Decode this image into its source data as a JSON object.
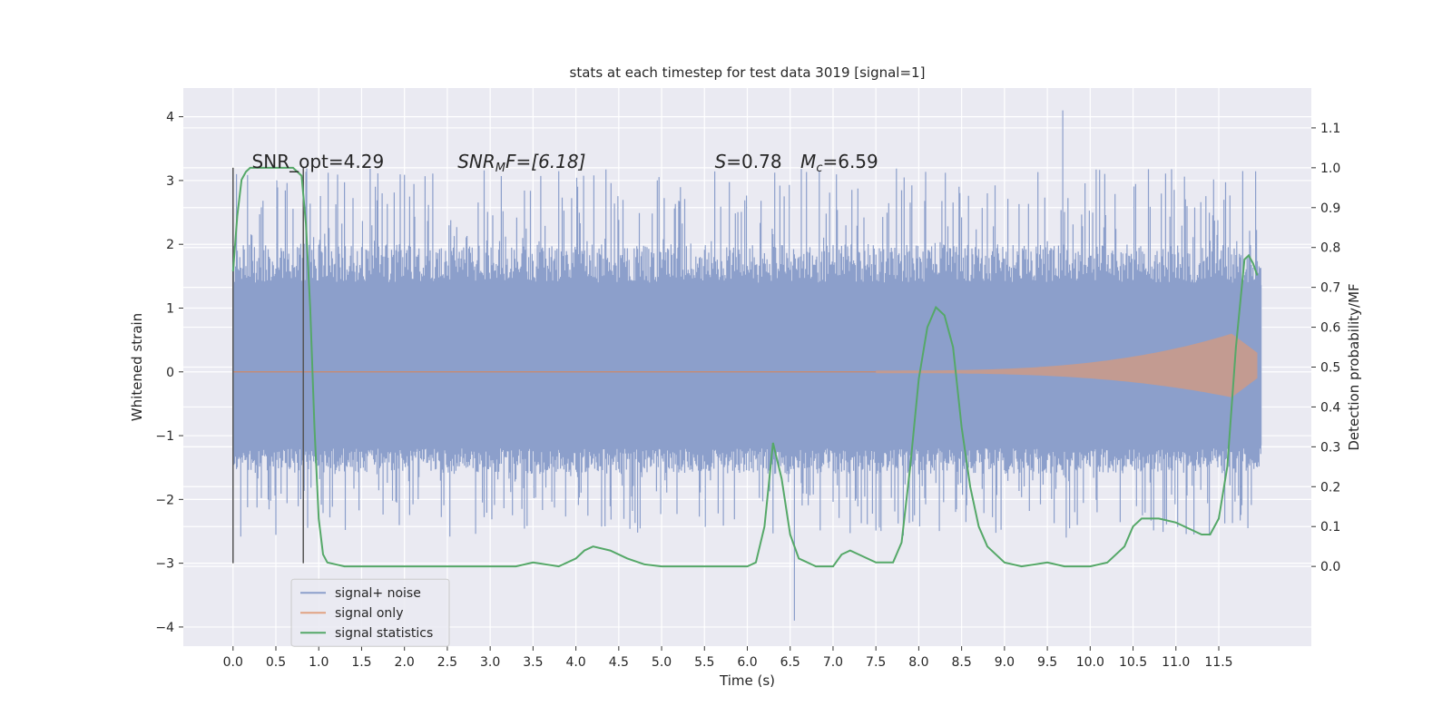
{
  "chart_data": {
    "type": "line",
    "title": "stats at each timestep for test data 3019 [signal=1]",
    "xlabel": "Time (s)",
    "ylabel": "Whitened strain",
    "ylabel_right": "Detection probability/MF",
    "xlim": [
      -0.58,
      12.58
    ],
    "ylim": [
      -4.3,
      4.45
    ],
    "ylim_right": [
      -0.2,
      1.2
    ],
    "x_ticks": [
      0.0,
      0.5,
      1.0,
      1.5,
      2.0,
      2.5,
      3.0,
      3.5,
      4.0,
      4.5,
      5.0,
      5.5,
      6.0,
      6.5,
      7.0,
      7.5,
      8.0,
      8.5,
      9.0,
      9.5,
      10.0,
      10.5,
      11.0,
      11.5
    ],
    "x_tick_labels": [
      "0.0",
      "0.5",
      "1.0",
      "1.5",
      "2.0",
      "2.5",
      "3.0",
      "3.5",
      "4.0",
      "4.5",
      "5.0",
      "5.5",
      "6.0",
      "6.5",
      "7.0",
      "7.5",
      "8.0",
      "8.5",
      "9.0",
      "9.5",
      "10.0",
      "10.5",
      "11.0",
      "11.5"
    ],
    "y_ticks": [
      -4,
      -3,
      -2,
      -1,
      0,
      1,
      2,
      3,
      4
    ],
    "y_tick_labels": [
      "−4",
      "−3",
      "−2",
      "−1",
      "0",
      "1",
      "2",
      "3",
      "4"
    ],
    "y_right_ticks": [
      0.0,
      0.1,
      0.2,
      0.3,
      0.4,
      0.5,
      0.6,
      0.7,
      0.8,
      0.9,
      1.0,
      1.1
    ],
    "y_right_tick_labels": [
      "0.0",
      "0.1",
      "0.2",
      "0.3",
      "0.4",
      "0.5",
      "0.6",
      "0.7",
      "0.8",
      "0.9",
      "1.0",
      "1.1"
    ],
    "grid": true,
    "legend_position": "lower-left",
    "annotations": {
      "snr_opt": "SNR_opt=4.29",
      "snr_mf_base": "SNR",
      "snr_mf_sub": "M",
      "snr_mf_rest": "F=[6.18]",
      "s_label": "S",
      "s_value": "=0.78",
      "mc_base": "M",
      "mc_sub": "c",
      "mc_value": "=6.59"
    },
    "vertical_lines": [
      0.0,
      0.82
    ],
    "series": [
      {
        "name": "signal+ noise",
        "color": "#8c9fcb",
        "x_range": [
          0.0,
          12.0
        ],
        "body_range": [
          -1.6,
          2.0
        ],
        "typical_peak_range": [
          -2.6,
          3.2
        ],
        "max_spike": 4.1,
        "min_spike": -3.9
      },
      {
        "name": "signal only",
        "color": "#dd8452",
        "chirp": {
          "start_time": 7.5,
          "end_time": 11.65,
          "max_amplitude_positive": 0.6,
          "max_amplitude_negative": -0.4,
          "end_amplitude_positive": 0.3,
          "end_amplitude_negative": -0.1
        }
      },
      {
        "name": "signal statistics",
        "color": "#55a868",
        "axis": "right",
        "x": [
          0.0,
          0.05,
          0.1,
          0.15,
          0.2,
          0.3,
          0.5,
          0.7,
          0.8,
          0.85,
          0.9,
          0.95,
          1.0,
          1.05,
          1.1,
          1.3,
          2.0,
          3.0,
          3.3,
          3.5,
          3.8,
          4.0,
          4.1,
          4.2,
          4.4,
          4.6,
          4.8,
          5.0,
          5.5,
          6.0,
          6.1,
          6.2,
          6.3,
          6.4,
          6.5,
          6.6,
          6.8,
          7.0,
          7.1,
          7.2,
          7.3,
          7.5,
          7.7,
          7.8,
          7.9,
          8.0,
          8.1,
          8.2,
          8.3,
          8.4,
          8.5,
          8.6,
          8.7,
          8.8,
          9.0,
          9.2,
          9.5,
          9.7,
          10.0,
          10.2,
          10.4,
          10.5,
          10.6,
          10.7,
          10.8,
          11.0,
          11.2,
          11.3,
          11.4,
          11.5,
          11.6,
          11.7,
          11.8,
          11.85,
          11.9,
          11.95
        ],
        "y": [
          0.74,
          0.88,
          0.97,
          0.99,
          1.0,
          1.0,
          1.0,
          1.0,
          0.98,
          0.86,
          0.65,
          0.35,
          0.12,
          0.03,
          0.01,
          0.0,
          0.0,
          0.0,
          0.0,
          0.01,
          0.0,
          0.02,
          0.04,
          0.05,
          0.04,
          0.02,
          0.005,
          0.0,
          0.0,
          0.0,
          0.01,
          0.1,
          0.31,
          0.22,
          0.08,
          0.02,
          0.0,
          0.0,
          0.03,
          0.04,
          0.03,
          0.01,
          0.01,
          0.06,
          0.25,
          0.47,
          0.6,
          0.65,
          0.63,
          0.55,
          0.35,
          0.2,
          0.1,
          0.05,
          0.01,
          0.0,
          0.01,
          0.0,
          0.0,
          0.01,
          0.05,
          0.1,
          0.12,
          0.12,
          0.12,
          0.11,
          0.09,
          0.08,
          0.08,
          0.12,
          0.25,
          0.55,
          0.77,
          0.78,
          0.76,
          0.73
        ]
      }
    ]
  }
}
